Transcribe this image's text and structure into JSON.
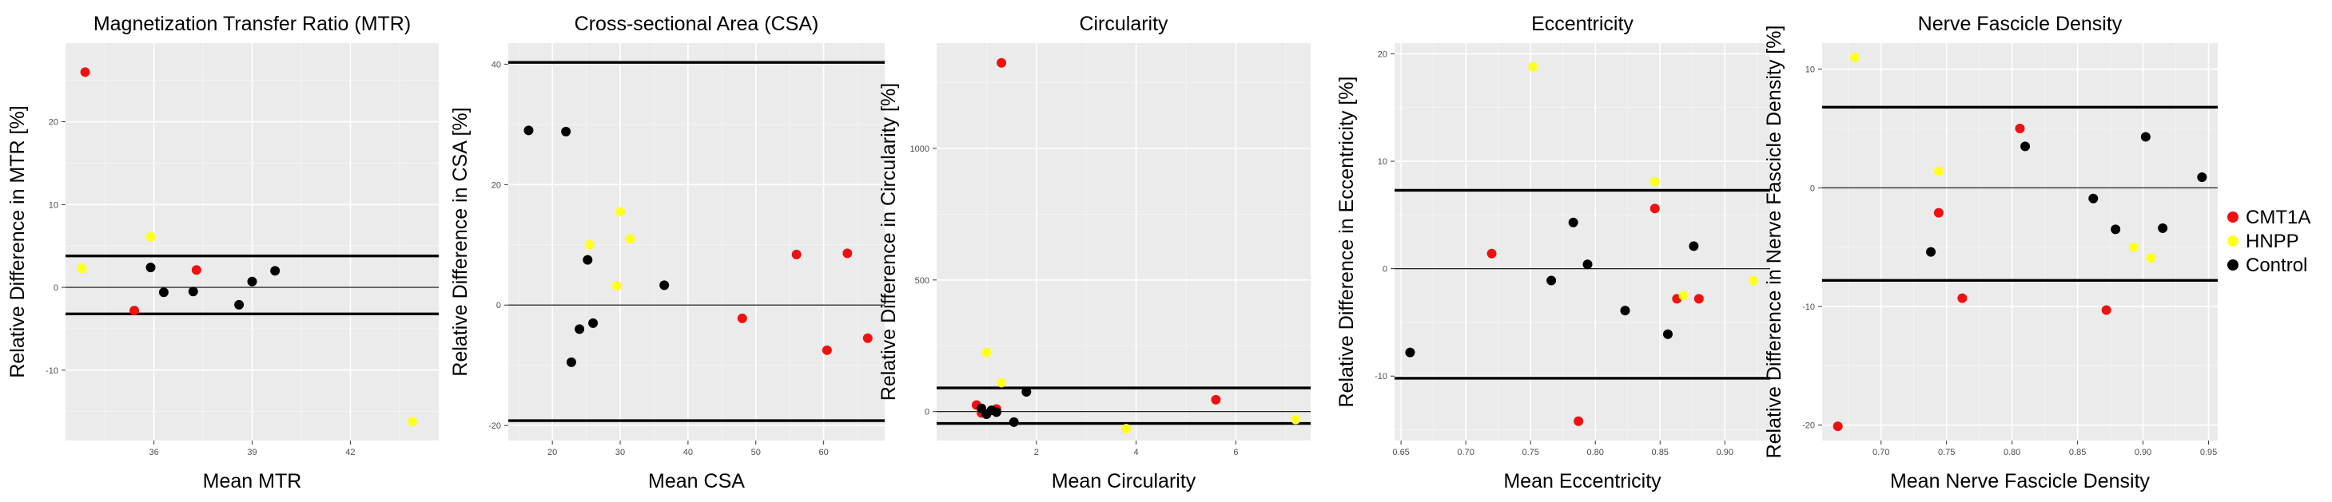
{
  "colors": {
    "panel_bg": "#ebebeb",
    "grid_major": "#ffffff",
    "grid_minor": "#f5f5f5",
    "CMT1A": "#ee1111",
    "HNPP": "#ffff22",
    "Control": "#000000"
  },
  "legend": {
    "items": [
      {
        "label": "CMT1A",
        "color": "#ee1111"
      },
      {
        "label": "HNPP",
        "color": "#ffff22"
      },
      {
        "label": "Control",
        "color": "#000000"
      }
    ]
  },
  "chart_data": [
    {
      "type": "scatter",
      "title": "Magnetization Transfer Ratio (MTR)",
      "xlabel": "Mean MTR",
      "ylabel": "Relative Difference in MTR [%]",
      "xlim": [
        33.3,
        44.7
      ],
      "ylim": [
        -18.5,
        29.5
      ],
      "xticks": [
        36,
        39,
        42
      ],
      "xtick_labels": [
        "36",
        "39",
        "42"
      ],
      "yticks": [
        -10,
        0,
        10,
        20
      ],
      "ytick_labels": [
        "-10",
        "0",
        "10",
        "20"
      ],
      "hlines": [
        {
          "y": 0,
          "weight": "thin"
        },
        {
          "y": 3.8,
          "weight": "thick"
        },
        {
          "y": -3.2,
          "weight": "thick"
        }
      ],
      "points": [
        {
          "group": "CMT1A",
          "x": 33.9,
          "y": 26.0
        },
        {
          "group": "CMT1A",
          "x": 35.4,
          "y": -2.8
        },
        {
          "group": "CMT1A",
          "x": 37.3,
          "y": 2.1
        },
        {
          "group": "HNPP",
          "x": 33.8,
          "y": 2.3
        },
        {
          "group": "HNPP",
          "x": 35.9,
          "y": 6.1
        },
        {
          "group": "HNPP",
          "x": 43.9,
          "y": -16.2
        },
        {
          "group": "Control",
          "x": 35.9,
          "y": 2.4
        },
        {
          "group": "Control",
          "x": 36.3,
          "y": -0.6
        },
        {
          "group": "Control",
          "x": 37.2,
          "y": -0.5
        },
        {
          "group": "Control",
          "x": 38.6,
          "y": -2.1
        },
        {
          "group": "Control",
          "x": 39.0,
          "y": 0.7
        },
        {
          "group": "Control",
          "x": 39.7,
          "y": 2.0
        }
      ]
    },
    {
      "type": "scatter",
      "title": "Cross-sectional Area (CSA)",
      "xlabel": "Mean CSA",
      "ylabel": "Relative Difference in CSA [%]",
      "xlim": [
        13.5,
        69
      ],
      "ylim": [
        -22.5,
        43.5
      ],
      "xticks": [
        20,
        30,
        40,
        50,
        60
      ],
      "xtick_labels": [
        "20",
        "30",
        "40",
        "50",
        "60"
      ],
      "yticks": [
        -20,
        0,
        20,
        40
      ],
      "ytick_labels": [
        "-20",
        "0",
        "20",
        "40"
      ],
      "hlines": [
        {
          "y": 0,
          "weight": "thin"
        },
        {
          "y": 40.3,
          "weight": "thick"
        },
        {
          "y": -19.2,
          "weight": "thick"
        }
      ],
      "points": [
        {
          "group": "CMT1A",
          "x": 48,
          "y": -2.2
        },
        {
          "group": "CMT1A",
          "x": 56,
          "y": 8.4
        },
        {
          "group": "CMT1A",
          "x": 60.5,
          "y": -7.5
        },
        {
          "group": "CMT1A",
          "x": 63.5,
          "y": 8.6
        },
        {
          "group": "CMT1A",
          "x": 66.5,
          "y": -5.5
        },
        {
          "group": "HNPP",
          "x": 25.5,
          "y": 10.0
        },
        {
          "group": "HNPP",
          "x": 29.5,
          "y": 3.2
        },
        {
          "group": "HNPP",
          "x": 30,
          "y": 15.5
        },
        {
          "group": "HNPP",
          "x": 31.5,
          "y": 11.0
        },
        {
          "group": "Control",
          "x": 16.5,
          "y": 29.0
        },
        {
          "group": "Control",
          "x": 22,
          "y": 28.8
        },
        {
          "group": "Control",
          "x": 22.8,
          "y": -9.5
        },
        {
          "group": "Control",
          "x": 24,
          "y": -4.0
        },
        {
          "group": "Control",
          "x": 25.2,
          "y": 7.5
        },
        {
          "group": "Control",
          "x": 26,
          "y": -3.0
        },
        {
          "group": "Control",
          "x": 36.5,
          "y": 3.3
        }
      ]
    },
    {
      "type": "scatter",
      "title": "Circularity",
      "xlabel": "Mean Circularity",
      "ylabel": "Relative Difference in Circularity [%]",
      "xlim": [
        0.0,
        7.5
      ],
      "ylim": [
        -110,
        1400
      ],
      "xticks": [
        2,
        4,
        6
      ],
      "xtick_labels": [
        "2",
        "4",
        "6"
      ],
      "yticks": [
        0,
        500,
        1000
      ],
      "ytick_labels": [
        "0",
        "500",
        "1000"
      ],
      "hlines": [
        {
          "y": 0,
          "weight": "thin"
        },
        {
          "y": 90,
          "weight": "thick"
        },
        {
          "y": -45,
          "weight": "thick"
        }
      ],
      "points": [
        {
          "group": "CMT1A",
          "x": 0.8,
          "y": 25
        },
        {
          "group": "CMT1A",
          "x": 0.9,
          "y": -5
        },
        {
          "group": "CMT1A",
          "x": 1.2,
          "y": 10
        },
        {
          "group": "CMT1A",
          "x": 1.3,
          "y": 1325
        },
        {
          "group": "CMT1A",
          "x": 5.6,
          "y": 45
        },
        {
          "group": "HNPP",
          "x": 1.0,
          "y": 225
        },
        {
          "group": "HNPP",
          "x": 1.3,
          "y": 110
        },
        {
          "group": "HNPP",
          "x": 3.8,
          "y": -65
        },
        {
          "group": "HNPP",
          "x": 7.2,
          "y": -30
        },
        {
          "group": "Control",
          "x": 0.9,
          "y": 12
        },
        {
          "group": "Control",
          "x": 1.0,
          "y": -10
        },
        {
          "group": "Control",
          "x": 1.1,
          "y": 5
        },
        {
          "group": "Control",
          "x": 1.2,
          "y": -2
        },
        {
          "group": "Control",
          "x": 1.55,
          "y": -40
        },
        {
          "group": "Control",
          "x": 1.8,
          "y": 75
        }
      ]
    },
    {
      "type": "scatter",
      "title": "Eccentricity",
      "xlabel": "Mean Eccentricity",
      "ylabel": "Relative Difference in Eccentricity [%]",
      "xlim": [
        0.645,
        0.935
      ],
      "ylim": [
        -16,
        21
      ],
      "xticks": [
        0.65,
        0.7,
        0.75,
        0.8,
        0.85,
        0.9
      ],
      "xtick_labels": [
        "0.65",
        "0.70",
        "0.75",
        "0.80",
        "0.85",
        "0.90"
      ],
      "yticks": [
        -10,
        0,
        10,
        20
      ],
      "ytick_labels": [
        "-10",
        "0",
        "10",
        "20"
      ],
      "hlines": [
        {
          "y": 0,
          "weight": "thin"
        },
        {
          "y": 7.3,
          "weight": "thick"
        },
        {
          "y": -10.2,
          "weight": "thick"
        }
      ],
      "points": [
        {
          "group": "CMT1A",
          "x": 0.72,
          "y": 1.4
        },
        {
          "group": "CMT1A",
          "x": 0.787,
          "y": -14.2
        },
        {
          "group": "CMT1A",
          "x": 0.846,
          "y": 5.6
        },
        {
          "group": "CMT1A",
          "x": 0.863,
          "y": -2.8
        },
        {
          "group": "CMT1A",
          "x": 0.88,
          "y": -2.8
        },
        {
          "group": "HNPP",
          "x": 0.752,
          "y": 18.8
        },
        {
          "group": "HNPP",
          "x": 0.846,
          "y": 8.1
        },
        {
          "group": "HNPP",
          "x": 0.868,
          "y": -2.5
        },
        {
          "group": "HNPP",
          "x": 0.922,
          "y": -1.1
        },
        {
          "group": "Control",
          "x": 0.657,
          "y": -7.8
        },
        {
          "group": "Control",
          "x": 0.766,
          "y": -1.1
        },
        {
          "group": "Control",
          "x": 0.783,
          "y": 4.3
        },
        {
          "group": "Control",
          "x": 0.794,
          "y": 0.4
        },
        {
          "group": "Control",
          "x": 0.823,
          "y": -3.9
        },
        {
          "group": "Control",
          "x": 0.856,
          "y": -6.1
        },
        {
          "group": "Control",
          "x": 0.876,
          "y": 2.1
        }
      ]
    },
    {
      "type": "scatter",
      "title": "Nerve Fascicle Density",
      "xlabel": "Mean Nerve Fascicle Density",
      "ylabel": "Relative Difference in Nerve Fascicle Density [%]",
      "xlim": [
        0.655,
        0.957
      ],
      "ylim": [
        -21.3,
        12.2
      ],
      "xticks": [
        0.7,
        0.75,
        0.8,
        0.85,
        0.9,
        0.95
      ],
      "xtick_labels": [
        "0.70",
        "0.75",
        "0.80",
        "0.85",
        "0.90",
        "0.95"
      ],
      "yticks": [
        -20,
        -10,
        0,
        10
      ],
      "ytick_labels": [
        "-20",
        "-10",
        "0",
        "10"
      ],
      "hlines": [
        {
          "y": 0,
          "weight": "thin"
        },
        {
          "y": 6.8,
          "weight": "thick"
        },
        {
          "y": -7.8,
          "weight": "thick"
        }
      ],
      "points": [
        {
          "group": "CMT1A",
          "x": 0.667,
          "y": -20.1
        },
        {
          "group": "CMT1A",
          "x": 0.744,
          "y": -2.1
        },
        {
          "group": "CMT1A",
          "x": 0.762,
          "y": -9.3
        },
        {
          "group": "CMT1A",
          "x": 0.806,
          "y": 5.0
        },
        {
          "group": "CMT1A",
          "x": 0.872,
          "y": -10.3
        },
        {
          "group": "HNPP",
          "x": 0.68,
          "y": 11.0
        },
        {
          "group": "HNPP",
          "x": 0.744,
          "y": 1.4
        },
        {
          "group": "HNPP",
          "x": 0.893,
          "y": -5.0
        },
        {
          "group": "HNPP",
          "x": 0.906,
          "y": -5.9
        },
        {
          "group": "Control",
          "x": 0.738,
          "y": -5.4
        },
        {
          "group": "Control",
          "x": 0.81,
          "y": 3.5
        },
        {
          "group": "Control",
          "x": 0.862,
          "y": -0.9
        },
        {
          "group": "Control",
          "x": 0.879,
          "y": -3.5
        },
        {
          "group": "Control",
          "x": 0.902,
          "y": 4.3
        },
        {
          "group": "Control",
          "x": 0.915,
          "y": -3.4
        },
        {
          "group": "Control",
          "x": 0.945,
          "y": 0.9
        }
      ]
    }
  ]
}
